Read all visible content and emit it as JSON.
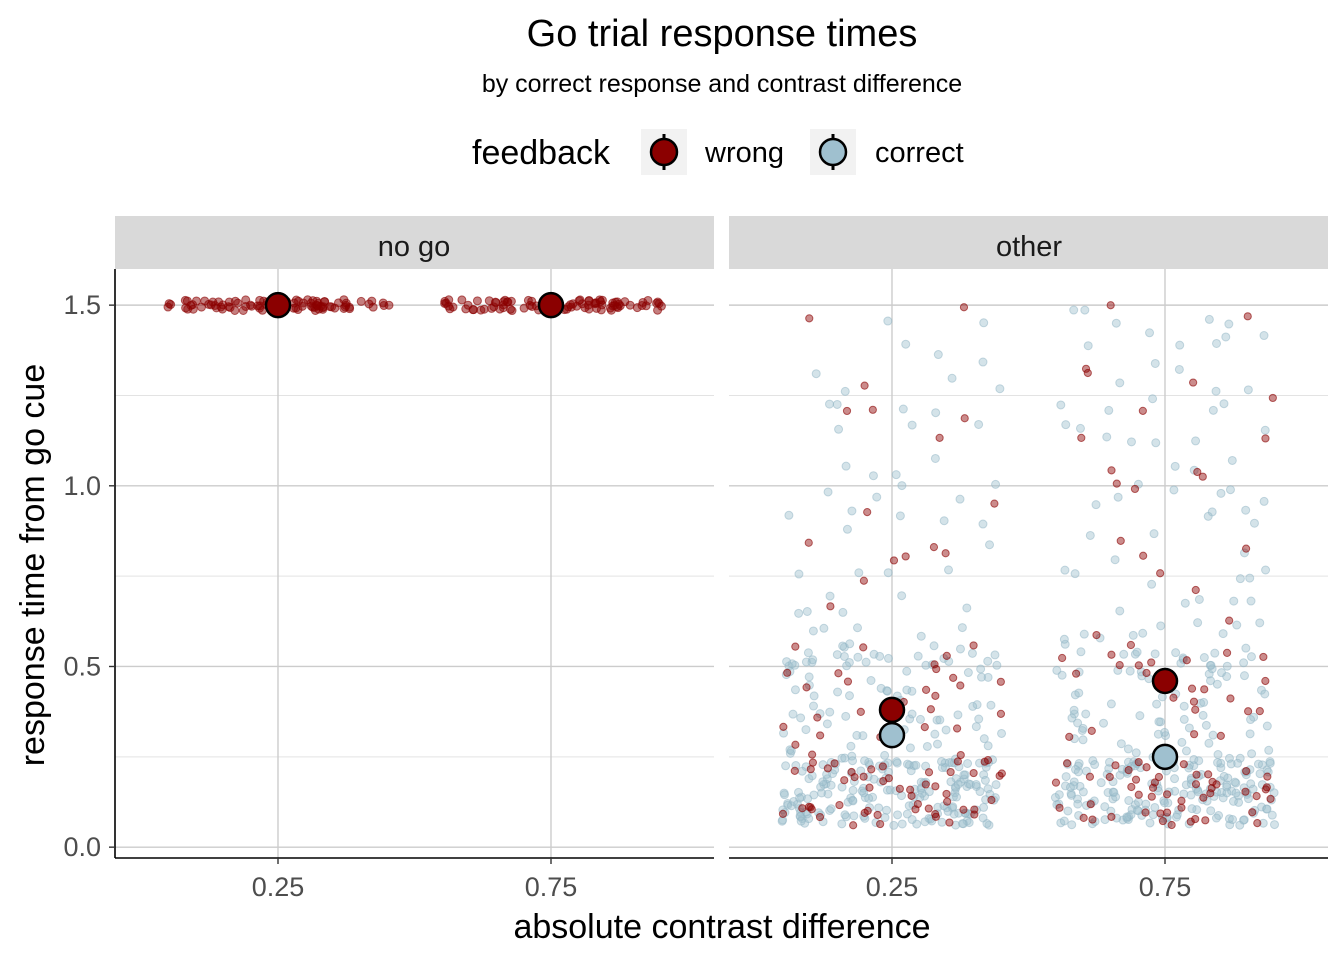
{
  "chart_data": {
    "type": "scatter",
    "title": "Go trial response times",
    "subtitle": "by correct response and contrast difference",
    "xlabel": "absolute contrast difference",
    "ylabel": "response time from go cue",
    "categories": [
      "0.25",
      "0.75"
    ],
    "y_ticks": [
      "0.0",
      "0.5",
      "1.0",
      "1.5"
    ],
    "ylim": [
      -0.03,
      1.6
    ],
    "grid": true,
    "legend": {
      "title": "feedback",
      "position": "top",
      "entries": [
        {
          "label": "wrong",
          "color": "#8b0000"
        },
        {
          "label": "correct",
          "color": "#9fc0cf"
        }
      ]
    },
    "facets": [
      {
        "label": "no go",
        "summary": [
          {
            "series": "wrong",
            "x": "0.25",
            "y": 1.5
          },
          {
            "series": "wrong",
            "x": "0.75",
            "y": 1.5
          }
        ]
      },
      {
        "label": "other",
        "summary": [
          {
            "series": "wrong",
            "x": "0.25",
            "y": 0.38
          },
          {
            "series": "correct",
            "x": "0.25",
            "y": 0.31
          },
          {
            "series": "wrong",
            "x": "0.75",
            "y": 0.46
          },
          {
            "series": "correct",
            "x": "0.75",
            "y": 0.25
          }
        ]
      }
    ]
  }
}
